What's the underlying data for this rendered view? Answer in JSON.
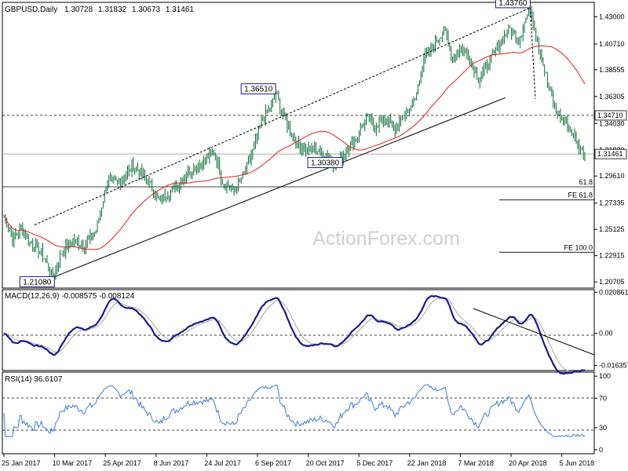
{
  "main_panel": {
    "symbol_label": "GBPUSD,Daily",
    "ohlc": [
      "1.30728",
      "1.31832",
      "1.30673",
      "1.31461"
    ],
    "watermark": "ActionForex.com",
    "y_ticks": [
      1.43,
      1.4071,
      1.3855,
      1.363,
      1.3403,
      1.3182,
      1.2961,
      1.27335,
      1.2512,
      1.22915,
      1.207
    ],
    "y_tick_labels": [
      "1.43000",
      "1.40710",
      "1.38555",
      "1.36305",
      "1.34030",
      "1.31820",
      "1.29610",
      "1.27335",
      "1.25125",
      "1.22915",
      "1.20705"
    ],
    "price_range": [
      1.2025,
      1.4415
    ],
    "current_price": 1.31461,
    "current_price_label": "1.31461",
    "level_1347": 1.3471,
    "level_1347_label": "1.34710",
    "retracement_level": 1.287,
    "retracement_label": "61.8",
    "fe618_level": 1.276,
    "fe618_label": "FE 61.8",
    "fe100_level": 1.232,
    "fe100_label": "FE 100.0",
    "peak_labels": [
      {
        "text": "1.21080",
        "bar": 34,
        "price": 1.2108
      },
      {
        "text": "1.36510",
        "bar": 189,
        "price": 1.3651
      },
      {
        "text": "1.30380",
        "bar": 231,
        "price": 1.3038
      },
      {
        "text": "1.43760",
        "bar": 366,
        "price": 1.4376
      }
    ]
  },
  "macd_panel": {
    "label": "MACD(12,26,9) -0.008575 -0.008124",
    "range": [
      -0.0185,
      0.0218
    ],
    "tick_values": [
      0.020861,
      0.0,
      -0.016357
    ],
    "tick_labels": [
      "0.020861",
      "0.00",
      "-0.016357"
    ]
  },
  "rsi_panel": {
    "label": "RSI(14) 36.6107",
    "tick_values": [
      100,
      70,
      30,
      0
    ],
    "tick_labels": [
      "100",
      "70",
      "30",
      "0"
    ]
  },
  "x_axis": {
    "labels": [
      "25 Jan 2017",
      "10 Mar 2017",
      "25 Apr 2017",
      "8 Jun 2017",
      "24 Jul 2017",
      "6 Sep 2017",
      "20 Oct 2017",
      "5 Dec 2017",
      "22 Jan 2018",
      "7 Mar 2018",
      "20 Apr 2018",
      "5 Jun 2018"
    ]
  },
  "colors": {
    "background": "#ffffff",
    "candle": "#0b6b33",
    "ma": "#e31a1c",
    "macd": "#1a1a8c",
    "signal": "#a8a8a8",
    "rsi": "#3a7bd5",
    "grid": "#000000",
    "label_border": "#1a1a8c"
  },
  "chart_data": {
    "type": "line",
    "title": "GBPUSD,Daily",
    "series": [
      {
        "name": "GBPUSD",
        "x": [
          "25 Jan 2017",
          "10 Mar 2017",
          "17 Mar 2017",
          "25 Apr 2017",
          "8 Jun 2017",
          "24 Jul 2017",
          "6 Sep 2017",
          "20 Sep 2017",
          "20 Oct 2017",
          "5 Dec 2017",
          "22 Jan 2018",
          "7 Mar 2018",
          "17 Apr 2018",
          "20 Apr 2018",
          "5 Jun 2018",
          "21 Jun 2018"
        ],
        "values": [
          1.25,
          1.22,
          1.2108,
          1.285,
          1.28,
          1.31,
          1.32,
          1.3651,
          1.3038,
          1.34,
          1.41,
          1.395,
          1.4376,
          1.405,
          1.34,
          1.31461
        ]
      }
    ],
    "yrange": [
      1.2025,
      1.4415
    ],
    "horizontal_levels": [
      1.3471,
      1.31461,
      1.287,
      1.276,
      1.232
    ],
    "indicators": [
      {
        "name": "MACD(12,26,9)",
        "value": -0.008575,
        "signal": -0.008124
      },
      {
        "name": "RSI(14)",
        "value": 36.6107
      }
    ]
  }
}
